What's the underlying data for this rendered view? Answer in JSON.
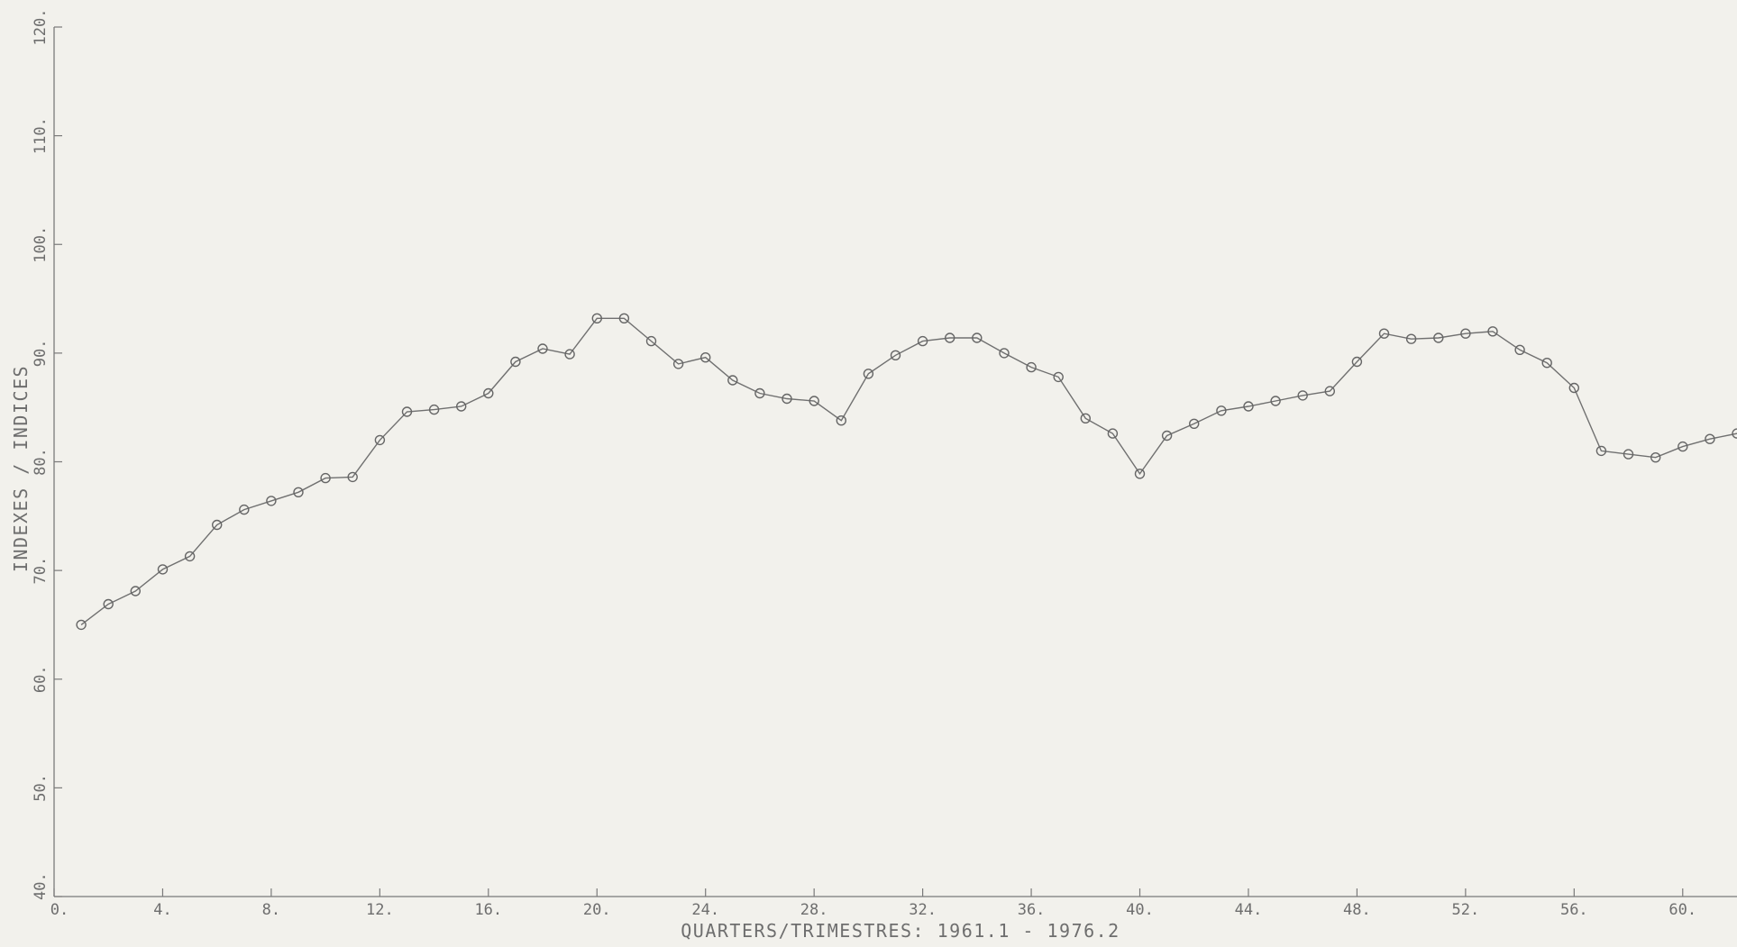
{
  "chart_data": {
    "type": "line",
    "title": "",
    "xlabel": "QUARTERS/TRIMESTRES:  1961.1  -  1976.2",
    "ylabel": "INDEXES / INDICES",
    "xlim": [
      0,
      62
    ],
    "ylim": [
      40,
      120
    ],
    "x_ticks": [
      0,
      4,
      8,
      12,
      16,
      20,
      24,
      28,
      32,
      36,
      40,
      44,
      48,
      52,
      56,
      60
    ],
    "x_tick_labels": [
      "0.",
      "4.",
      "8.",
      "12.",
      "16.",
      "20.",
      "24.",
      "28.",
      "32.",
      "36.",
      "40.",
      "44.",
      "48.",
      "52.",
      "56.",
      "60."
    ],
    "y_ticks": [
      40,
      50,
      60,
      70,
      80,
      90,
      100,
      110,
      120
    ],
    "y_tick_labels": [
      "40.",
      "50.",
      "60.",
      "70.",
      "80.",
      "90.",
      "100.",
      "110.",
      "120."
    ],
    "grid": false,
    "markers": "circle",
    "series": [
      {
        "x": [
          1,
          2,
          3,
          4,
          5,
          6,
          7,
          8,
          9,
          10,
          11,
          12,
          13,
          14,
          15,
          16,
          17,
          18,
          19,
          20,
          21,
          22,
          23,
          24,
          25,
          26,
          27,
          28,
          29,
          30,
          31,
          32,
          33,
          34,
          35,
          36,
          37,
          38,
          39,
          40,
          41,
          42,
          43,
          44,
          45,
          46,
          47,
          48,
          49,
          50,
          51,
          52,
          53,
          54,
          55,
          56,
          57,
          58,
          59,
          60,
          61,
          62
        ],
        "values": [
          65.0,
          66.9,
          68.1,
          70.1,
          71.3,
          74.2,
          75.6,
          76.4,
          77.2,
          78.5,
          78.6,
          82.0,
          84.6,
          84.8,
          85.1,
          86.3,
          89.2,
          90.4,
          89.9,
          93.2,
          93.2,
          91.1,
          89.0,
          89.6,
          87.5,
          86.3,
          85.8,
          85.6,
          83.8,
          88.1,
          89.8,
          91.1,
          91.4,
          91.4,
          90.0,
          88.7,
          87.8,
          84.0,
          82.6,
          78.9,
          82.4,
          83.5,
          84.7,
          85.1,
          85.6,
          86.1,
          86.5,
          89.2,
          91.8,
          91.3,
          91.4,
          91.8,
          92.0,
          90.3,
          89.1,
          86.8,
          81.0,
          80.7,
          80.4,
          81.4,
          82.1,
          82.6
        ]
      }
    ]
  }
}
